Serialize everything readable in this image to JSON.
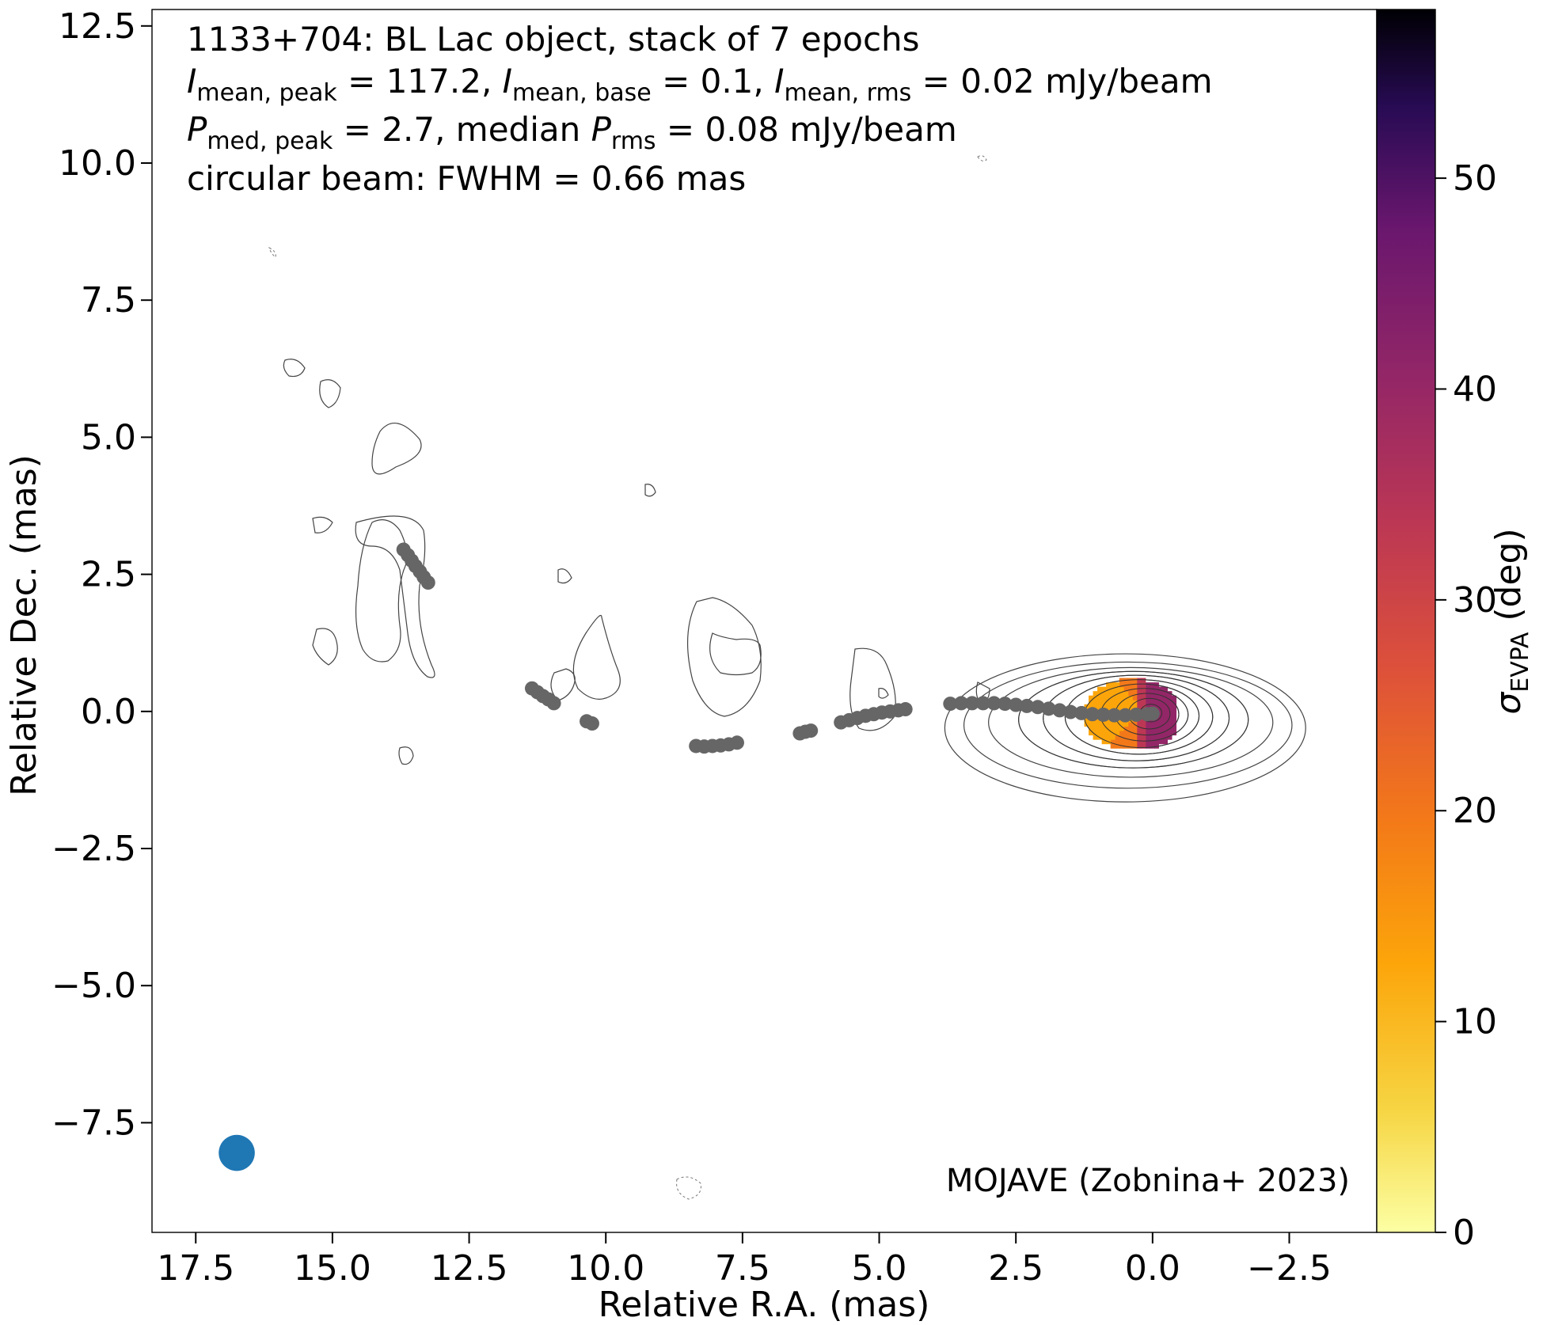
{
  "chart_data": {
    "type": "scatter",
    "annotations": {
      "title": "1133+704: BL Lac object, stack of 7 epochs",
      "line2": {
        "i_peak_label": "I",
        "i_peak_sub": "mean, peak",
        "i_peak_value": " = 117.2, ",
        "i_base_label": "I",
        "i_base_sub": "mean, base",
        "i_base_value": " = 0.1, ",
        "i_rms_label": "I",
        "i_rms_sub": "mean, rms",
        "i_rms_value": " = 0.02 mJy/beam"
      },
      "line3": {
        "p_peak_label": "P",
        "p_peak_sub": "med, peak",
        "p_peak_value": " = 2.7, median ",
        "p_rms_label": "P",
        "p_rms_sub": "rms",
        "p_rms_value": " = 0.08 mJy/beam"
      },
      "beam_text": "circular beam: FWHM = 0.66 mas",
      "credit": "MOJAVE (Zobnina+ 2023)"
    },
    "xlabel": "Relative R.A. (mas)",
    "ylabel": "Relative Dec. (mas)",
    "xlim": [
      18.3,
      -4.1
    ],
    "ylim": [
      -9.5,
      12.8
    ],
    "xticks": [
      17.5,
      15.0,
      12.5,
      10.0,
      7.5,
      5.0,
      2.5,
      0.0,
      -2.5
    ],
    "xtick_labels": [
      "17.5",
      "15.0",
      "12.5",
      "10.0",
      "7.5",
      "5.0",
      "2.5",
      "0.0",
      "−2.5"
    ],
    "yticks": [
      12.5,
      10.0,
      7.5,
      5.0,
      2.5,
      0.0,
      -2.5,
      -5.0,
      -7.5
    ],
    "ytick_labels": [
      "12.5",
      "10.0",
      "7.5",
      "5.0",
      "2.5",
      "0.0",
      "−2.5",
      "−5.0",
      "−7.5"
    ],
    "colorbar": {
      "label_symbol": "σ",
      "label_sub": "EVPA",
      "label_unit": " (deg)",
      "range": [
        0,
        58
      ],
      "colormap": "inferno_r",
      "ticks": [
        0,
        10,
        20,
        30,
        40,
        50
      ],
      "tick_labels": [
        "0",
        "10",
        "20",
        "30",
        "40",
        "50"
      ]
    },
    "ridgeline": {
      "name": "jet ridgeline",
      "color": "#666666",
      "points": [
        [
          13.7,
          2.95
        ],
        [
          13.62,
          2.85
        ],
        [
          13.55,
          2.75
        ],
        [
          13.48,
          2.65
        ],
        [
          13.4,
          2.55
        ],
        [
          13.33,
          2.45
        ],
        [
          13.25,
          2.35
        ],
        [
          11.35,
          0.42
        ],
        [
          11.25,
          0.35
        ],
        [
          11.15,
          0.28
        ],
        [
          11.05,
          0.22
        ],
        [
          10.95,
          0.15
        ],
        [
          10.35,
          -0.18
        ],
        [
          10.25,
          -0.22
        ],
        [
          8.35,
          -0.63
        ],
        [
          8.2,
          -0.64
        ],
        [
          8.05,
          -0.63
        ],
        [
          7.9,
          -0.62
        ],
        [
          7.75,
          -0.6
        ],
        [
          7.6,
          -0.57
        ],
        [
          6.45,
          -0.4
        ],
        [
          6.35,
          -0.37
        ],
        [
          6.25,
          -0.35
        ],
        [
          5.7,
          -0.2
        ],
        [
          5.55,
          -0.16
        ],
        [
          5.4,
          -0.12
        ],
        [
          5.25,
          -0.08
        ],
        [
          5.1,
          -0.05
        ],
        [
          4.95,
          -0.02
        ],
        [
          4.8,
          0.0
        ],
        [
          4.65,
          0.02
        ],
        [
          4.52,
          0.04
        ],
        [
          3.7,
          0.14
        ],
        [
          3.5,
          0.15
        ],
        [
          3.3,
          0.15
        ],
        [
          3.1,
          0.15
        ],
        [
          2.9,
          0.15
        ],
        [
          2.7,
          0.14
        ],
        [
          2.5,
          0.12
        ],
        [
          2.3,
          0.1
        ],
        [
          2.1,
          0.08
        ],
        [
          1.9,
          0.05
        ],
        [
          1.7,
          0.02
        ],
        [
          1.5,
          -0.01
        ],
        [
          1.3,
          -0.03
        ],
        [
          1.1,
          -0.05
        ],
        [
          0.9,
          -0.06
        ],
        [
          0.7,
          -0.07
        ],
        [
          0.5,
          -0.07
        ],
        [
          0.3,
          -0.06
        ],
        [
          0.1,
          -0.05
        ],
        [
          0.0,
          -0.04
        ]
      ]
    },
    "beam_marker": {
      "x": 16.75,
      "y": -8.05,
      "fwhm_mas": 0.66,
      "color": "#1f77b4"
    },
    "core_contours_mas": [
      {
        "x": 0.5,
        "y": -0.3,
        "rx": 3.3,
        "ry": 1.35
      },
      {
        "x": 0.45,
        "y": -0.25,
        "rx": 3.0,
        "ry": 1.15
      },
      {
        "x": 0.4,
        "y": -0.2,
        "rx": 2.6,
        "ry": 1.0
      },
      {
        "x": 0.35,
        "y": -0.15,
        "rx": 2.1,
        "ry": 0.88
      },
      {
        "x": 0.3,
        "y": -0.12,
        "rx": 1.7,
        "ry": 0.78
      },
      {
        "x": 0.25,
        "y": -0.1,
        "rx": 1.35,
        "ry": 0.68
      },
      {
        "x": 0.2,
        "y": -0.08,
        "rx": 1.05,
        "ry": 0.58
      },
      {
        "x": 0.15,
        "y": -0.06,
        "rx": 0.8,
        "ry": 0.48
      },
      {
        "x": 0.1,
        "y": -0.05,
        "rx": 0.58,
        "ry": 0.38
      },
      {
        "x": 0.06,
        "y": -0.04,
        "rx": 0.38,
        "ry": 0.28
      },
      {
        "x": 0.03,
        "y": -0.03,
        "rx": 0.2,
        "ry": 0.16
      }
    ],
    "evpa_patch": {
      "x_range": [
        1.45,
        -0.35
      ],
      "y_range": [
        -0.75,
        0.55
      ],
      "sigma_min_deg": 5,
      "sigma_max_deg": 45
    }
  }
}
